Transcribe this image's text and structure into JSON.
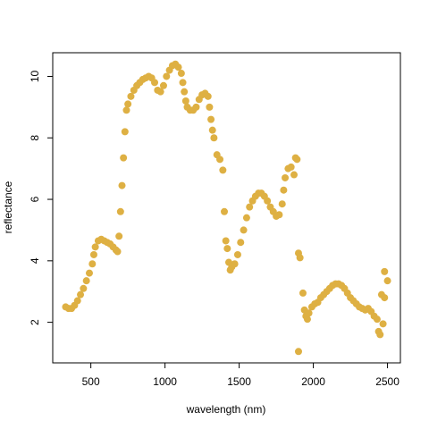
{
  "chart_data": {
    "type": "scatter",
    "xlabel": "wavelength (nm)",
    "ylabel": "reflectance",
    "color": "#deb043",
    "x": [
      330,
      350,
      370,
      390,
      410,
      430,
      450,
      470,
      490,
      510,
      520,
      530,
      550,
      570,
      590,
      610,
      630,
      650,
      670,
      680,
      690,
      700,
      710,
      720,
      730,
      740,
      750,
      770,
      790,
      810,
      830,
      850,
      870,
      890,
      910,
      930,
      950,
      970,
      990,
      1010,
      1030,
      1050,
      1070,
      1090,
      1110,
      1120,
      1130,
      1140,
      1150,
      1170,
      1190,
      1210,
      1230,
      1250,
      1270,
      1290,
      1300,
      1310,
      1320,
      1330,
      1350,
      1370,
      1390,
      1400,
      1410,
      1420,
      1430,
      1440,
      1450,
      1470,
      1490,
      1510,
      1530,
      1550,
      1570,
      1590,
      1610,
      1630,
      1650,
      1670,
      1690,
      1710,
      1730,
      1750,
      1770,
      1790,
      1800,
      1810,
      1830,
      1850,
      1870,
      1880,
      1890,
      1900,
      1910,
      1900,
      1930,
      1940,
      1950,
      1960,
      1970,
      1990,
      2010,
      2030,
      2050,
      2070,
      2090,
      2110,
      2130,
      2150,
      2170,
      2190,
      2210,
      2230,
      2250,
      2270,
      2290,
      2310,
      2330,
      2350,
      2370,
      2390,
      2410,
      2430,
      2440,
      2450,
      2460,
      2470,
      2480,
      2480,
      2500
    ],
    "values": [
      2.5,
      2.45,
      2.45,
      2.55,
      2.7,
      2.9,
      3.1,
      3.35,
      3.6,
      3.9,
      4.2,
      4.45,
      4.65,
      4.7,
      4.65,
      4.6,
      4.55,
      4.45,
      4.35,
      4.3,
      4.8,
      5.6,
      6.45,
      7.35,
      8.2,
      8.9,
      9.1,
      9.35,
      9.55,
      9.7,
      9.8,
      9.9,
      9.95,
      10.0,
      9.95,
      9.8,
      9.55,
      9.5,
      9.7,
      10.0,
      10.2,
      10.35,
      10.4,
      10.3,
      10.1,
      9.8,
      9.5,
      9.2,
      9.0,
      8.9,
      8.9,
      9.0,
      9.25,
      9.4,
      9.45,
      9.35,
      9.0,
      8.6,
      8.25,
      8.0,
      7.45,
      7.3,
      6.95,
      5.6,
      4.65,
      4.4,
      3.95,
      3.7,
      3.8,
      3.9,
      4.2,
      4.6,
      5.0,
      5.4,
      5.75,
      5.95,
      6.1,
      6.2,
      6.2,
      6.1,
      5.95,
      5.75,
      5.6,
      5.45,
      5.5,
      5.85,
      6.3,
      6.7,
      7.0,
      7.05,
      6.8,
      7.35,
      7.3,
      4.25,
      4.1,
      1.05,
      2.95,
      2.4,
      2.2,
      2.1,
      2.3,
      2.5,
      2.6,
      2.65,
      2.8,
      2.9,
      3.0,
      3.1,
      3.2,
      3.25,
      3.25,
      3.2,
      3.1,
      2.95,
      2.8,
      2.7,
      2.6,
      2.5,
      2.45,
      2.4,
      2.45,
      2.35,
      2.2,
      2.1,
      1.7,
      1.6,
      2.9,
      1.95,
      2.8,
      3.65,
      3.35
    ],
    "xlim": [
      243,
      2587
    ],
    "ylim": [
      0.68,
      10.77
    ],
    "xticks": [
      500,
      1000,
      1500,
      2000,
      2500
    ],
    "yticks": [
      2,
      4,
      6,
      8,
      10
    ]
  }
}
